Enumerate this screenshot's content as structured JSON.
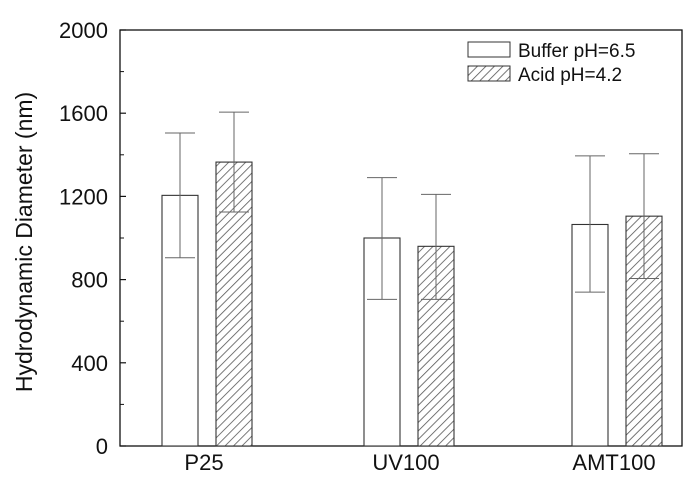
{
  "chart_data": {
    "type": "bar",
    "title": "",
    "xlabel": "",
    "ylabel": "Hydrodynamic Diameter (nm)",
    "categories": [
      "P25",
      "UV100",
      "AMT100"
    ],
    "ylim": [
      0,
      2000
    ],
    "yticks": [
      0,
      400,
      800,
      1200,
      1600,
      2000
    ],
    "grid": false,
    "legend_position": "top-right",
    "series": [
      {
        "name": "Buffer pH=6.5",
        "pattern": "open",
        "values": [
          1205,
          1000,
          1065
        ],
        "error_low": [
          905,
          705,
          740
        ],
        "error_high": [
          1505,
          1290,
          1395
        ]
      },
      {
        "name": "Acid pH=4.2",
        "pattern": "hatched",
        "values": [
          1365,
          960,
          1105
        ],
        "error_low": [
          1125,
          705,
          805
        ],
        "error_high": [
          1605,
          1210,
          1405
        ]
      }
    ],
    "colors": {
      "axis": "#111111",
      "bar_edge": "#333333",
      "bar_fill": "#ffffff",
      "hatch": "#555555",
      "error_bar": "#666666"
    }
  }
}
